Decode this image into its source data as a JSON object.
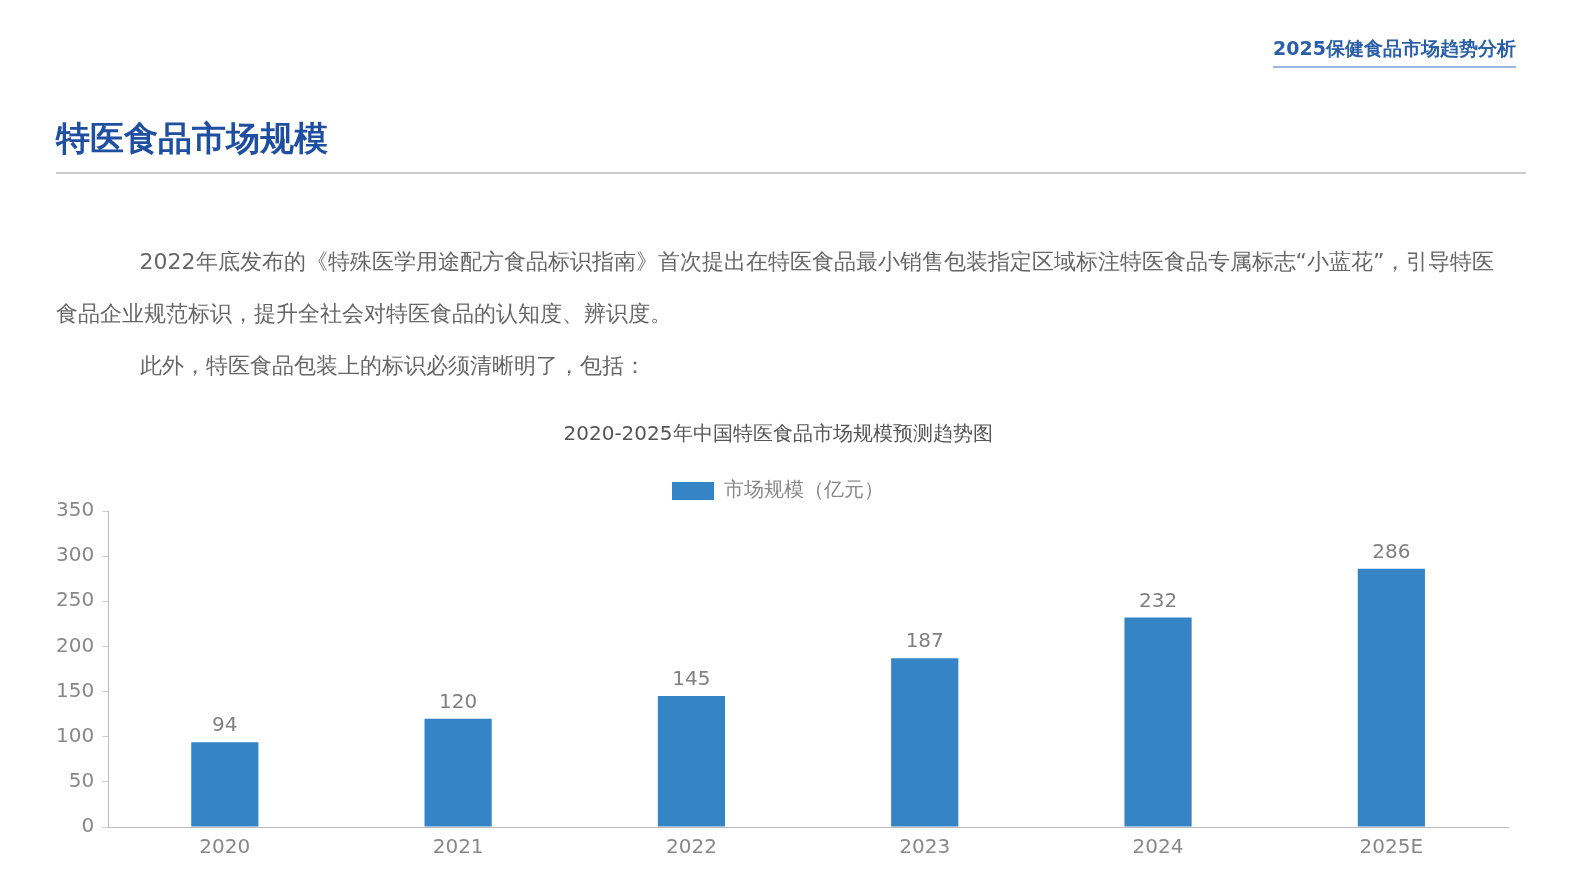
{
  "chart_data": {
    "type": "bar",
    "title": "2020-2025年中国特医食品市场规模预测趋势图",
    "annotations": [
      "2025保健食品市场趋势分析",
      "特医食品市场规模",
      "2022年底发布的《特殊医学用途配方食品标识指南》首次提出在特医食品最小销售包装指定区域标注特医食品专属标志“小蓝花”，引导特医食品企业规范标识，提升全社会对特医食品的认知度、辨识度。",
      "此外，特医食品包装上的标识必须清晰明了，包括："
    ],
    "categories": [
      "2020",
      "2021",
      "2022",
      "2023",
      "2024",
      "2025E"
    ],
    "series": [
      {
        "name": "市场规模（亿元）",
        "color": "#3584c6",
        "values": [
          94,
          120,
          145,
          187,
          232,
          286
        ]
      }
    ],
    "ylim": [
      0,
      350
    ],
    "yticks": [
      0,
      50,
      100,
      150,
      200,
      250,
      300,
      350
    ],
    "grid": false,
    "legend": "top",
    "data_labels": true
  }
}
